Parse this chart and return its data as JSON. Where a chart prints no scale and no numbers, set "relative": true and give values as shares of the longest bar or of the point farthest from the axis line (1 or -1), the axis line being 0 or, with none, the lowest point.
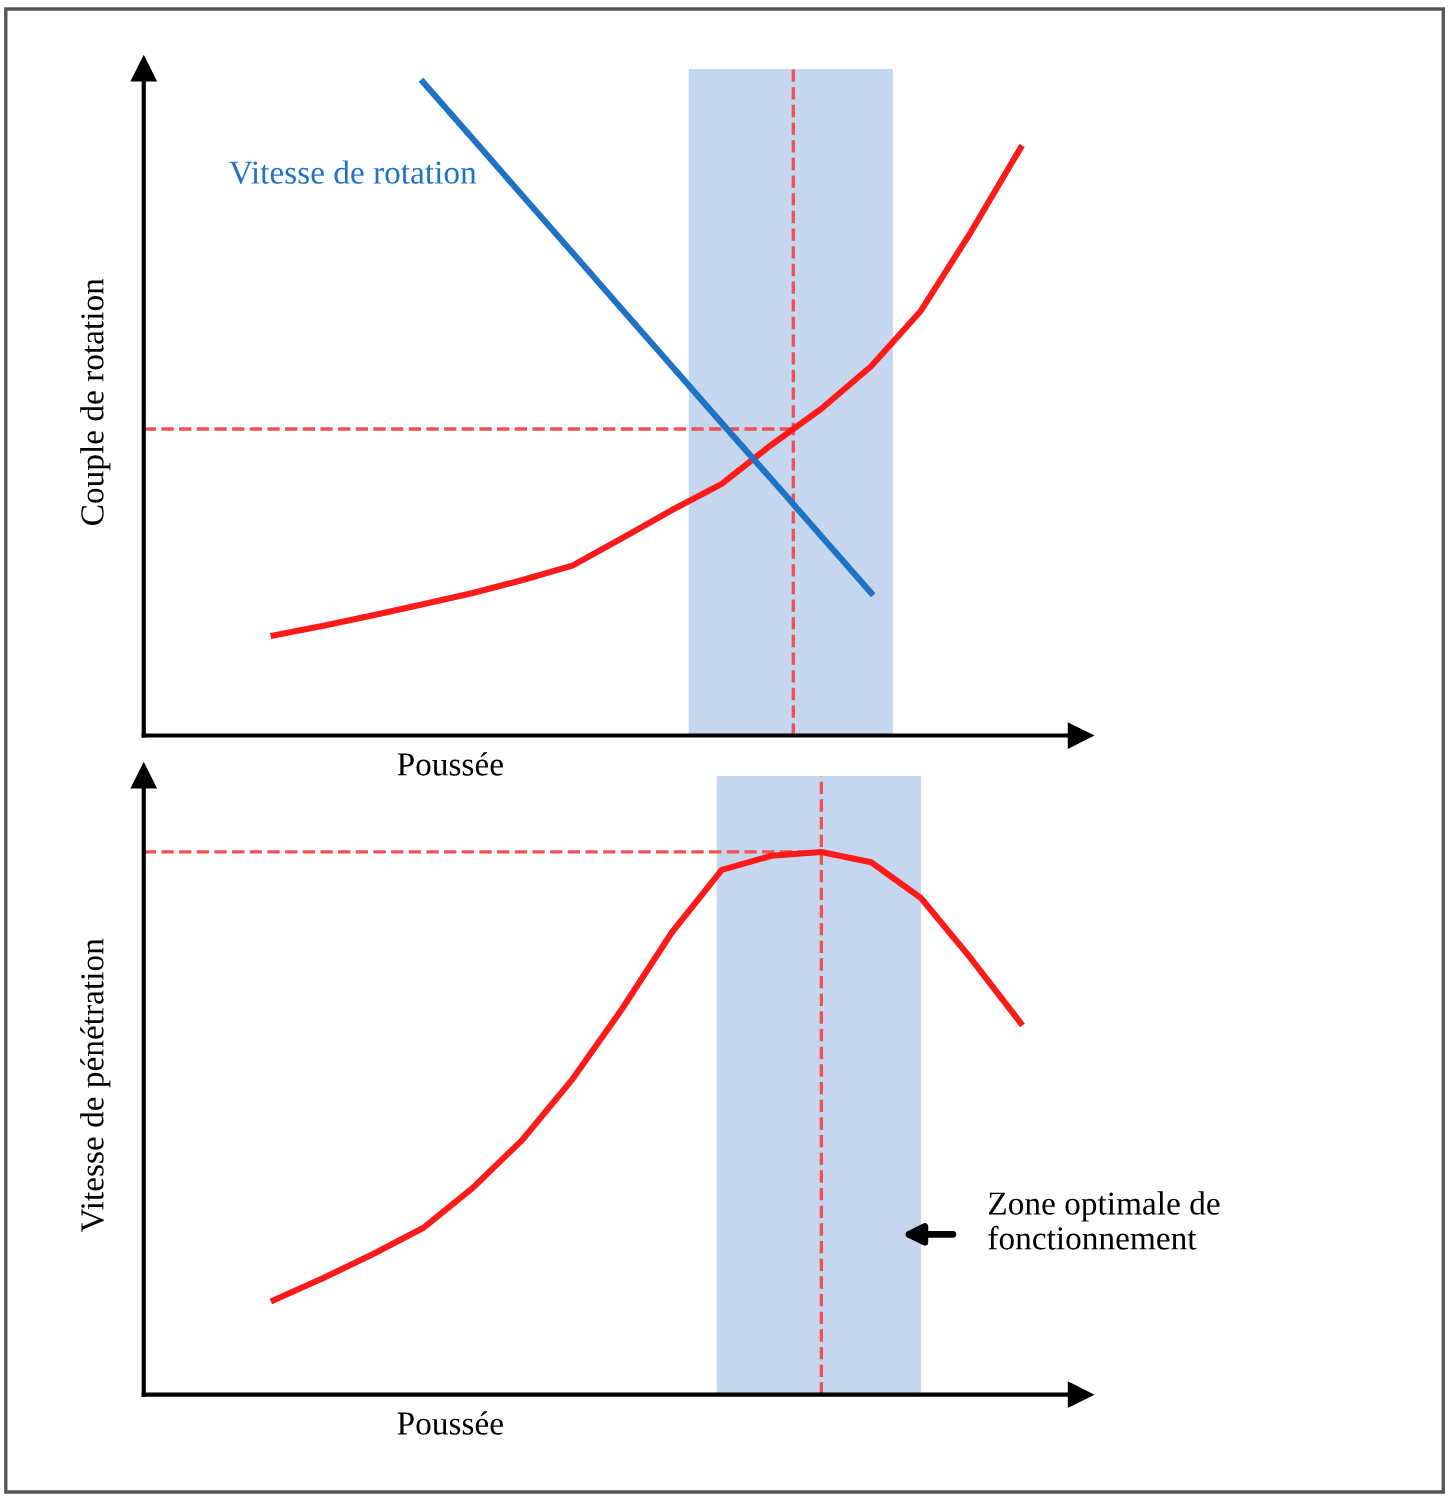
{
  "chart_data": [
    {
      "type": "line",
      "xlabel": "Poussée",
      "ylabel": "Couple de rotation",
      "relative": true,
      "legend": false,
      "marker": "none",
      "line_style": "solid",
      "categories": [
        null,
        null,
        null,
        null,
        null,
        null,
        null,
        null,
        null,
        null,
        null,
        null,
        null,
        null,
        null,
        null
      ],
      "series": [
        {
          "color": "#ff1a1a",
          "values": [
            0.153,
            0.168,
            0.184,
            0.201,
            0.218,
            0.238,
            0.26,
            0.302,
            0.345,
            0.385,
            0.445,
            0.5,
            0.565,
            0.65,
            0.77,
            0.899
          ]
        },
        {
          "name": "Vitesse de rotation",
          "color": "#1f72c4",
          "values": [
            null,
            null,
            null,
            1.0,
            0.913,
            0.826,
            0.739,
            0.652,
            0.565,
            0.478,
            0.392,
            0.305,
            0.218,
            null,
            null,
            null
          ]
        }
      ],
      "ref_lines": [
        {
          "axis": "y",
          "value": 0.469,
          "color": "#f05050",
          "line_style": "dashed"
        }
      ]
    },
    {
      "type": "line",
      "xlabel": "Poussée",
      "ylabel": "Vitesse de pénétration",
      "relative": true,
      "legend": false,
      "marker": "none",
      "line_style": "solid",
      "categories": [
        null,
        null,
        null,
        null,
        null,
        null,
        null,
        null,
        null,
        null,
        null,
        null,
        null,
        null,
        null,
        null
      ],
      "series": [
        {
          "color": "#ff1a1a",
          "values": [
            0.174,
            0.215,
            0.259,
            0.307,
            0.381,
            0.47,
            0.581,
            0.711,
            0.852,
            0.967,
            0.993,
            1.0,
            0.981,
            0.915,
            0.804,
            0.685
          ]
        }
      ],
      "ref_lines": [
        {
          "axis": "y",
          "value": 1.0,
          "color": "#f05050",
          "line_style": "dashed"
        }
      ],
      "annotations": [
        "Zone optimale de fonctionnement"
      ]
    }
  ]
}
